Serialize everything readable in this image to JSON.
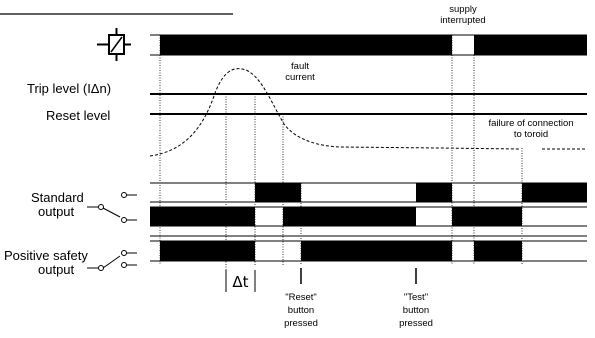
{
  "diagram": {
    "labels": {
      "trip_level": "Trip level (IΔn)",
      "reset_level": "Reset level",
      "standard_output_line1": "Standard",
      "standard_output_line2": "output",
      "positive_safety_line1": "Positive safety",
      "positive_safety_line2": "output",
      "delta_t": "Δt"
    },
    "annotations": {
      "supply_line1": "supply",
      "supply_line2": "interrupted",
      "fault_line1": "fault",
      "fault_line2": "current",
      "failure_line1": "failure of connection",
      "failure_line2": "to toroid",
      "reset_line1": "\"Reset\"",
      "reset_line2": "button",
      "reset_line3": "pressed",
      "test_line1": "\"Test\"",
      "test_line2": "button",
      "test_line3": "pressed"
    },
    "icons": {
      "relay_coil": "relay-coil-icon",
      "contact_switch": "changeover-contact-icon"
    },
    "colors": {
      "ink": "#000000",
      "background": "#ffffff"
    }
  }
}
